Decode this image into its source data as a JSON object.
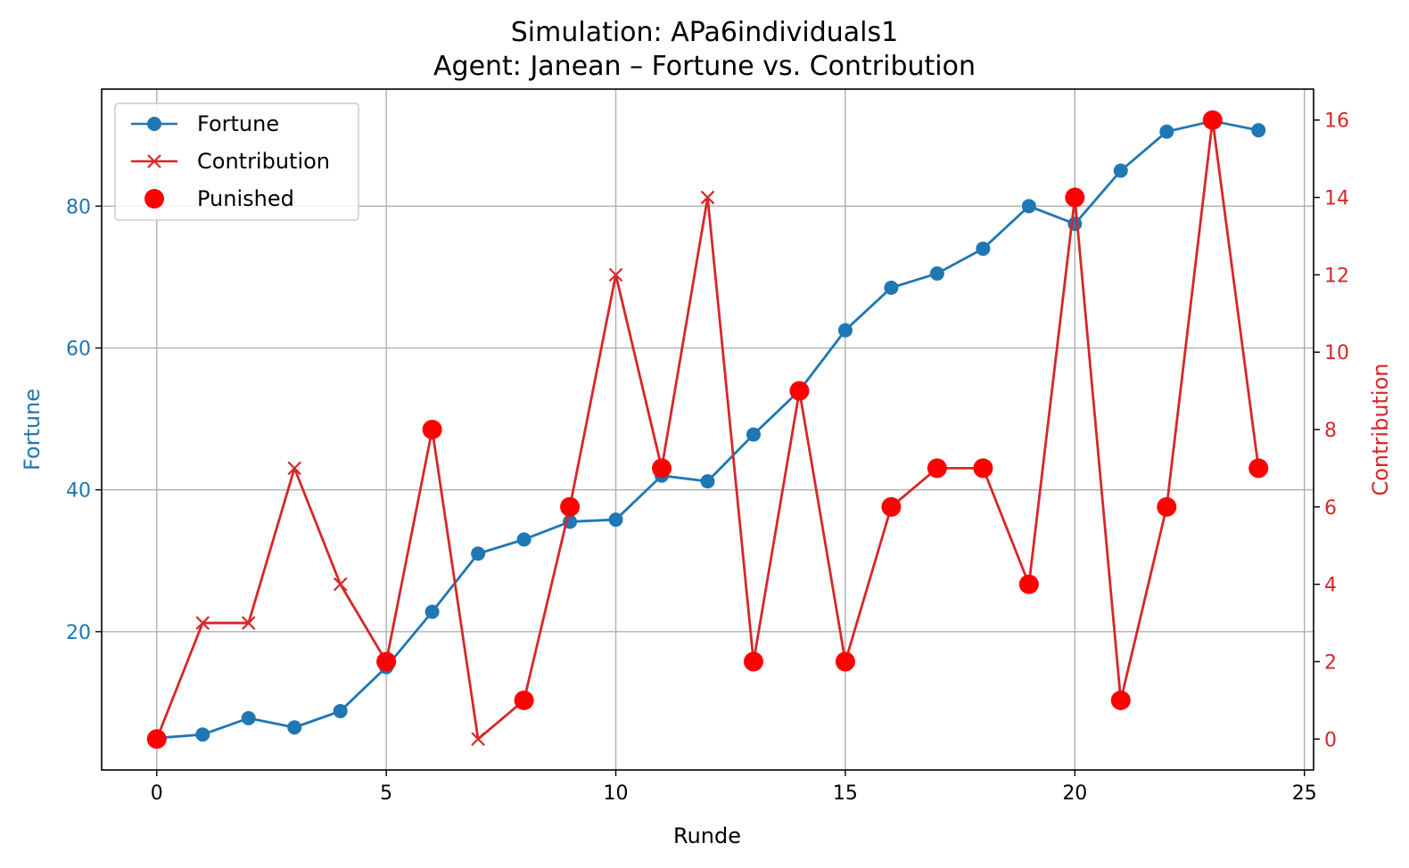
{
  "chart_data": {
    "type": "line",
    "title": "Simulation: APa6individuals1",
    "subtitle": "Agent: Janean – Fortune vs. Contribution",
    "xlabel": "Runde",
    "ylabel_left": "Fortune",
    "ylabel_right": "Contribution",
    "xlim": [
      -1.2,
      25.2
    ],
    "ylim_left": [
      0.5,
      96.5
    ],
    "ylim_right": [
      -0.8,
      16.8
    ],
    "xticks": [
      0,
      5,
      10,
      15,
      20,
      25
    ],
    "yticks_left": [
      20,
      40,
      60,
      80
    ],
    "yticks_right": [
      0,
      2,
      4,
      6,
      8,
      10,
      12,
      14,
      16
    ],
    "grid": true,
    "legend_position": "upper-left",
    "colors": {
      "fortune": "#1f77b4",
      "contribution": "#d62728",
      "punished": "#ff0000"
    },
    "x": [
      0,
      1,
      2,
      3,
      4,
      5,
      6,
      7,
      8,
      9,
      10,
      11,
      12,
      13,
      14,
      15,
      16,
      17,
      18,
      19,
      20,
      21,
      22,
      23,
      24
    ],
    "series": [
      {
        "name": "Fortune",
        "axis": "left",
        "marker": "circle",
        "values": [
          5,
          5.5,
          7.8,
          6.5,
          8.8,
          15,
          22.8,
          31,
          33,
          35.5,
          35.8,
          42,
          41.2,
          47.8,
          54,
          62.5,
          68.5,
          70.5,
          74,
          80,
          77.5,
          85,
          90.5,
          92,
          90.7
        ]
      },
      {
        "name": "Contribution",
        "axis": "right",
        "marker": "x",
        "values": [
          0,
          3,
          3,
          7,
          4,
          2,
          8,
          0,
          1,
          6,
          12,
          7,
          14,
          2,
          9,
          2,
          6,
          7,
          7,
          4,
          14,
          1,
          6,
          16,
          7
        ]
      },
      {
        "name": "Punished",
        "axis": "right",
        "marker": "filled-circle",
        "x": [
          0,
          5,
          6,
          8,
          9,
          11,
          13,
          14,
          15,
          16,
          17,
          18,
          19,
          20,
          21,
          22,
          23,
          24
        ],
        "values": [
          0,
          2,
          8,
          1,
          6,
          7,
          2,
          9,
          2,
          6,
          7,
          7,
          4,
          14,
          1,
          6,
          16,
          7
        ]
      }
    ]
  }
}
